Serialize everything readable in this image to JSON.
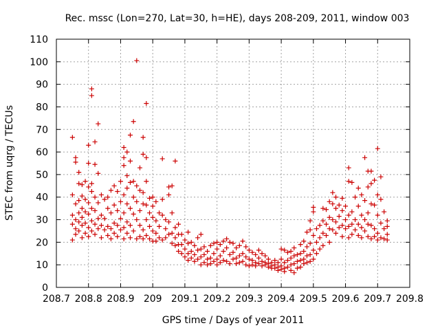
{
  "chart_data": {
    "type": "scatter",
    "title": "Rec. mssc (Lon=270, Lat=30, h=HE), days 208-209, 2011, window 003",
    "xlabel": "GPS time / Days of year 2011",
    "ylabel": "STEC from uqrg / TECUs",
    "xlim": [
      208.7,
      209.8
    ],
    "ylim": [
      0,
      110
    ],
    "xticks": [
      "208.7",
      "208.8",
      "208.9",
      "209",
      "209.1",
      "209.2",
      "209.3",
      "209.4",
      "209.5",
      "209.6",
      "209.7",
      "209.8"
    ],
    "yticks": [
      "0",
      "10",
      "20",
      "30",
      "40",
      "50",
      "60",
      "70",
      "80",
      "90",
      "100",
      "110"
    ],
    "grid": true,
    "marker": "plus",
    "color": "#cc0000",
    "points": [
      [
        208.75,
        66.5
      ],
      [
        208.75,
        41.0
      ],
      [
        208.75,
        32.0
      ],
      [
        208.75,
        28.0
      ],
      [
        208.75,
        21.0
      ],
      [
        208.76,
        57.5
      ],
      [
        208.76,
        55.5
      ],
      [
        208.76,
        37.0
      ],
      [
        208.76,
        30.0
      ],
      [
        208.76,
        26.0
      ],
      [
        208.76,
        23.5
      ],
      [
        208.77,
        51.0
      ],
      [
        208.77,
        46.0
      ],
      [
        208.77,
        38.5
      ],
      [
        208.77,
        33.0
      ],
      [
        208.77,
        29.0
      ],
      [
        208.77,
        25.0
      ],
      [
        208.78,
        45.5
      ],
      [
        208.78,
        40.5
      ],
      [
        208.78,
        35.0
      ],
      [
        208.78,
        31.0
      ],
      [
        208.78,
        27.5
      ],
      [
        208.78,
        22.0
      ],
      [
        208.79,
        47.0
      ],
      [
        208.79,
        39.0
      ],
      [
        208.79,
        33.5
      ],
      [
        208.79,
        28.5
      ],
      [
        208.79,
        24.0
      ],
      [
        208.8,
        63.0
      ],
      [
        208.8,
        55.0
      ],
      [
        208.8,
        44.5
      ],
      [
        208.8,
        37.5
      ],
      [
        208.8,
        32.5
      ],
      [
        208.8,
        26.5
      ],
      [
        208.8,
        22.5
      ],
      [
        208.81,
        88.0
      ],
      [
        208.81,
        85.0
      ],
      [
        208.81,
        46.0
      ],
      [
        208.81,
        42.5
      ],
      [
        208.81,
        35.0
      ],
      [
        208.81,
        29.5
      ],
      [
        208.81,
        25.0
      ],
      [
        208.82,
        64.5
      ],
      [
        208.82,
        54.5
      ],
      [
        208.82,
        40.0
      ],
      [
        208.82,
        34.0
      ],
      [
        208.82,
        28.0
      ],
      [
        208.82,
        23.5
      ],
      [
        208.83,
        72.5
      ],
      [
        208.83,
        50.5
      ],
      [
        208.83,
        37.5
      ],
      [
        208.83,
        30.5
      ],
      [
        208.83,
        26.0
      ],
      [
        208.84,
        41.0
      ],
      [
        208.84,
        32.0
      ],
      [
        208.84,
        27.5
      ],
      [
        208.84,
        22.0
      ],
      [
        208.85,
        39.0
      ],
      [
        208.85,
        30.5
      ],
      [
        208.85,
        25.5
      ],
      [
        208.86,
        40.0
      ],
      [
        208.86,
        35.0
      ],
      [
        208.86,
        27.0
      ],
      [
        208.86,
        23.0
      ],
      [
        208.87,
        43.0
      ],
      [
        208.87,
        33.0
      ],
      [
        208.87,
        26.0
      ],
      [
        208.87,
        21.5
      ],
      [
        208.88,
        45.0
      ],
      [
        208.88,
        36.5
      ],
      [
        208.88,
        28.5
      ],
      [
        208.88,
        24.0
      ],
      [
        208.89,
        42.5
      ],
      [
        208.89,
        34.0
      ],
      [
        208.89,
        27.5
      ],
      [
        208.89,
        22.5
      ],
      [
        208.9,
        47.0
      ],
      [
        208.9,
        38.0
      ],
      [
        208.9,
        30.5
      ],
      [
        208.9,
        25.5
      ],
      [
        208.91,
        62.0
      ],
      [
        208.91,
        57.5
      ],
      [
        208.91,
        54.0
      ],
      [
        208.91,
        41.0
      ],
      [
        208.91,
        33.0
      ],
      [
        208.91,
        26.5
      ],
      [
        208.91,
        21.5
      ],
      [
        208.92,
        60.0
      ],
      [
        208.92,
        49.5
      ],
      [
        208.92,
        44.0
      ],
      [
        208.92,
        37.0
      ],
      [
        208.92,
        29.0
      ],
      [
        208.92,
        24.0
      ],
      [
        208.93,
        67.5
      ],
      [
        208.93,
        56.0
      ],
      [
        208.93,
        46.5
      ],
      [
        208.93,
        35.0
      ],
      [
        208.93,
        27.5
      ],
      [
        208.93,
        22.0
      ],
      [
        208.94,
        73.5
      ],
      [
        208.94,
        47.0
      ],
      [
        208.94,
        40.0
      ],
      [
        208.94,
        32.5
      ],
      [
        208.94,
        25.0
      ],
      [
        208.95,
        100.5
      ],
      [
        208.95,
        45.0
      ],
      [
        208.95,
        38.0
      ],
      [
        208.95,
        30.0
      ],
      [
        208.95,
        21.5
      ],
      [
        208.96,
        53.0
      ],
      [
        208.96,
        43.0
      ],
      [
        208.96,
        34.0
      ],
      [
        208.96,
        27.5
      ],
      [
        208.96,
        22.5
      ],
      [
        208.97,
        66.5
      ],
      [
        208.97,
        59.0
      ],
      [
        208.97,
        42.0
      ],
      [
        208.97,
        37.0
      ],
      [
        208.97,
        25.5
      ],
      [
        208.97,
        21.5
      ],
      [
        208.98,
        81.5
      ],
      [
        208.98,
        57.5
      ],
      [
        208.98,
        47.0
      ],
      [
        208.98,
        36.5
      ],
      [
        208.98,
        30.0
      ],
      [
        208.98,
        23.0
      ],
      [
        208.99,
        39.5
      ],
      [
        208.99,
        33.0
      ],
      [
        208.99,
        27.0
      ],
      [
        208.99,
        21.5
      ],
      [
        209.0,
        40.0
      ],
      [
        209.0,
        36.0
      ],
      [
        209.0,
        31.0
      ],
      [
        209.0,
        25.0
      ],
      [
        209.0,
        20.5
      ],
      [
        209.01,
        38.0
      ],
      [
        209.01,
        29.5
      ],
      [
        209.01,
        24.0
      ],
      [
        209.01,
        20.5
      ],
      [
        209.02,
        33.0
      ],
      [
        209.02,
        27.0
      ],
      [
        209.02,
        22.0
      ],
      [
        209.03,
        57.0
      ],
      [
        209.03,
        39.0
      ],
      [
        209.03,
        32.0
      ],
      [
        209.03,
        21.0
      ],
      [
        209.04,
        30.0
      ],
      [
        209.04,
        26.0
      ],
      [
        209.04,
        22.0
      ],
      [
        209.05,
        44.5
      ],
      [
        209.05,
        41.0
      ],
      [
        209.05,
        29.0
      ],
      [
        209.05,
        23.5
      ],
      [
        209.06,
        45.0
      ],
      [
        209.06,
        33.0
      ],
      [
        209.06,
        24.0
      ],
      [
        209.06,
        19.5
      ],
      [
        209.07,
        56.0
      ],
      [
        209.07,
        26.5
      ],
      [
        209.07,
        22.0
      ],
      [
        209.07,
        18.5
      ],
      [
        209.08,
        28.0
      ],
      [
        209.08,
        23.5
      ],
      [
        209.08,
        19.0
      ],
      [
        209.08,
        16.0
      ],
      [
        209.09,
        23.5
      ],
      [
        209.09,
        19.0
      ],
      [
        209.09,
        15.0
      ],
      [
        209.1,
        21.0
      ],
      [
        209.1,
        17.0
      ],
      [
        209.1,
        13.5
      ],
      [
        209.11,
        24.5
      ],
      [
        209.11,
        19.5
      ],
      [
        209.11,
        15.0
      ],
      [
        209.11,
        12.0
      ],
      [
        209.12,
        20.0
      ],
      [
        209.12,
        16.0
      ],
      [
        209.12,
        13.0
      ],
      [
        209.13,
        18.5
      ],
      [
        209.13,
        14.5
      ],
      [
        209.13,
        11.5
      ],
      [
        209.14,
        22.0
      ],
      [
        209.14,
        16.5
      ],
      [
        209.14,
        12.5
      ],
      [
        209.15,
        23.5
      ],
      [
        209.15,
        17.0
      ],
      [
        209.15,
        13.5
      ],
      [
        209.15,
        10.0
      ],
      [
        209.16,
        18.0
      ],
      [
        209.16,
        14.5
      ],
      [
        209.16,
        11.0
      ],
      [
        209.17,
        16.0
      ],
      [
        209.17,
        12.5
      ],
      [
        209.17,
        10.0
      ],
      [
        209.18,
        18.5
      ],
      [
        209.18,
        13.0
      ],
      [
        209.18,
        10.5
      ],
      [
        209.19,
        19.5
      ],
      [
        209.19,
        15.0
      ],
      [
        209.19,
        11.5
      ],
      [
        209.2,
        20.0
      ],
      [
        209.2,
        17.0
      ],
      [
        209.2,
        12.5
      ],
      [
        209.2,
        10.0
      ],
      [
        209.21,
        19.0
      ],
      [
        209.21,
        14.0
      ],
      [
        209.21,
        11.0
      ],
      [
        209.22,
        20.5
      ],
      [
        209.22,
        16.0
      ],
      [
        209.22,
        12.0
      ],
      [
        209.23,
        21.5
      ],
      [
        209.23,
        17.5
      ],
      [
        209.23,
        11.5
      ],
      [
        209.24,
        20.0
      ],
      [
        209.24,
        14.5
      ],
      [
        209.24,
        10.5
      ],
      [
        209.25,
        19.5
      ],
      [
        209.25,
        15.5
      ],
      [
        209.25,
        12.5
      ],
      [
        209.26,
        17.5
      ],
      [
        209.26,
        13.0
      ],
      [
        209.26,
        10.5
      ],
      [
        209.27,
        18.5
      ],
      [
        209.27,
        14.0
      ],
      [
        209.27,
        11.0
      ],
      [
        209.28,
        20.5
      ],
      [
        209.28,
        15.0
      ],
      [
        209.28,
        11.5
      ],
      [
        209.29,
        18.0
      ],
      [
        209.29,
        13.5
      ],
      [
        209.29,
        10.0
      ],
      [
        209.3,
        16.5
      ],
      [
        209.3,
        12.5
      ],
      [
        209.3,
        9.5
      ],
      [
        209.31,
        15.5
      ],
      [
        209.31,
        12.0
      ],
      [
        209.31,
        10.0
      ],
      [
        209.32,
        14.5
      ],
      [
        209.32,
        11.0
      ],
      [
        209.32,
        9.5
      ],
      [
        209.33,
        16.5
      ],
      [
        209.33,
        13.0
      ],
      [
        209.33,
        10.5
      ],
      [
        209.34,
        15.0
      ],
      [
        209.34,
        11.5
      ],
      [
        209.34,
        9.5
      ],
      [
        209.35,
        14.0
      ],
      [
        209.35,
        11.0
      ],
      [
        209.35,
        10.0
      ],
      [
        209.36,
        12.5
      ],
      [
        209.36,
        10.5
      ],
      [
        209.36,
        9.0
      ],
      [
        209.37,
        11.0
      ],
      [
        209.37,
        9.5
      ],
      [
        209.37,
        8.5
      ],
      [
        209.38,
        12.0
      ],
      [
        209.38,
        10.0
      ],
      [
        209.38,
        8.5
      ],
      [
        209.39,
        11.0
      ],
      [
        209.39,
        9.0
      ],
      [
        209.39,
        7.5
      ],
      [
        209.4,
        17.0
      ],
      [
        209.4,
        12.5
      ],
      [
        209.4,
        9.5
      ],
      [
        209.4,
        8.0
      ],
      [
        209.41,
        16.5
      ],
      [
        209.41,
        11.0
      ],
      [
        209.41,
        8.5
      ],
      [
        209.41,
        7.0
      ],
      [
        209.42,
        15.5
      ],
      [
        209.42,
        12.0
      ],
      [
        209.42,
        9.0
      ],
      [
        209.43,
        16.0
      ],
      [
        209.43,
        13.0
      ],
      [
        209.43,
        10.0
      ],
      [
        209.43,
        7.5
      ],
      [
        209.44,
        17.5
      ],
      [
        209.44,
        14.0
      ],
      [
        209.44,
        10.5
      ],
      [
        209.44,
        6.5
      ],
      [
        209.45,
        14.5
      ],
      [
        209.45,
        11.5
      ],
      [
        209.45,
        8.5
      ],
      [
        209.46,
        19.0
      ],
      [
        209.46,
        15.0
      ],
      [
        209.46,
        12.0
      ],
      [
        209.46,
        9.0
      ],
      [
        209.47,
        20.5
      ],
      [
        209.47,
        16.0
      ],
      [
        209.47,
        12.5
      ],
      [
        209.47,
        10.5
      ],
      [
        209.48,
        24.5
      ],
      [
        209.48,
        18.0
      ],
      [
        209.48,
        14.0
      ],
      [
        209.48,
        11.0
      ],
      [
        209.49,
        29.5
      ],
      [
        209.49,
        25.5
      ],
      [
        209.49,
        19.5
      ],
      [
        209.49,
        14.5
      ],
      [
        209.49,
        11.5
      ],
      [
        209.5,
        35.5
      ],
      [
        209.5,
        33.5
      ],
      [
        209.5,
        23.0
      ],
      [
        209.5,
        16.5
      ],
      [
        209.5,
        12.5
      ],
      [
        209.51,
        26.0
      ],
      [
        209.51,
        20.0
      ],
      [
        209.51,
        15.0
      ],
      [
        209.52,
        27.5
      ],
      [
        209.52,
        22.0
      ],
      [
        209.52,
        17.0
      ],
      [
        209.53,
        35.0
      ],
      [
        209.53,
        29.5
      ],
      [
        209.53,
        24.0
      ],
      [
        209.53,
        18.5
      ],
      [
        209.54,
        34.5
      ],
      [
        209.54,
        28.0
      ],
      [
        209.54,
        23.0
      ],
      [
        209.55,
        38.0
      ],
      [
        209.55,
        31.0
      ],
      [
        209.55,
        26.0
      ],
      [
        209.55,
        20.0
      ],
      [
        209.56,
        42.0
      ],
      [
        209.56,
        37.0
      ],
      [
        209.56,
        30.0
      ],
      [
        209.56,
        25.5
      ],
      [
        209.57,
        40.0
      ],
      [
        209.57,
        35.0
      ],
      [
        209.57,
        29.0
      ],
      [
        209.57,
        24.0
      ],
      [
        209.58,
        36.5
      ],
      [
        209.58,
        31.5
      ],
      [
        209.58,
        26.5
      ],
      [
        209.59,
        39.5
      ],
      [
        209.59,
        34.0
      ],
      [
        209.59,
        27.5
      ],
      [
        209.59,
        22.5
      ],
      [
        209.6,
        36.0
      ],
      [
        209.6,
        30.0
      ],
      [
        209.6,
        26.0
      ],
      [
        209.61,
        53.0
      ],
      [
        209.61,
        47.0
      ],
      [
        209.61,
        32.0
      ],
      [
        209.61,
        27.0
      ],
      [
        209.61,
        22.0
      ],
      [
        209.62,
        46.5
      ],
      [
        209.62,
        33.5
      ],
      [
        209.62,
        28.0
      ],
      [
        209.62,
        23.5
      ],
      [
        209.63,
        40.0
      ],
      [
        209.63,
        30.0
      ],
      [
        209.63,
        25.5
      ],
      [
        209.64,
        44.0
      ],
      [
        209.64,
        36.0
      ],
      [
        209.64,
        28.0
      ],
      [
        209.64,
        23.0
      ],
      [
        209.65,
        41.0
      ],
      [
        209.65,
        32.0
      ],
      [
        209.65,
        26.5
      ],
      [
        209.65,
        22.0
      ],
      [
        209.66,
        57.5
      ],
      [
        209.66,
        38.5
      ],
      [
        209.66,
        30.0
      ],
      [
        209.66,
        25.0
      ],
      [
        209.67,
        51.5
      ],
      [
        209.67,
        44.5
      ],
      [
        209.67,
        33.0
      ],
      [
        209.67,
        28.0
      ],
      [
        209.67,
        22.5
      ],
      [
        209.68,
        51.5
      ],
      [
        209.68,
        46.0
      ],
      [
        209.68,
        37.0
      ],
      [
        209.68,
        27.5
      ],
      [
        209.68,
        21.5
      ],
      [
        209.69,
        47.5
      ],
      [
        209.69,
        36.5
      ],
      [
        209.69,
        26.0
      ],
      [
        209.69,
        22.5
      ],
      [
        209.7,
        61.5
      ],
      [
        209.7,
        41.0
      ],
      [
        209.7,
        32.0
      ],
      [
        209.7,
        24.0
      ],
      [
        209.7,
        21.0
      ],
      [
        209.71,
        49.0
      ],
      [
        209.71,
        39.0
      ],
      [
        209.71,
        28.5
      ],
      [
        209.71,
        22.0
      ],
      [
        209.72,
        33.5
      ],
      [
        209.72,
        26.0
      ],
      [
        209.72,
        21.5
      ],
      [
        209.73,
        29.5
      ],
      [
        209.73,
        27.0
      ],
      [
        209.73,
        23.5
      ],
      [
        209.73,
        21.0
      ]
    ]
  }
}
